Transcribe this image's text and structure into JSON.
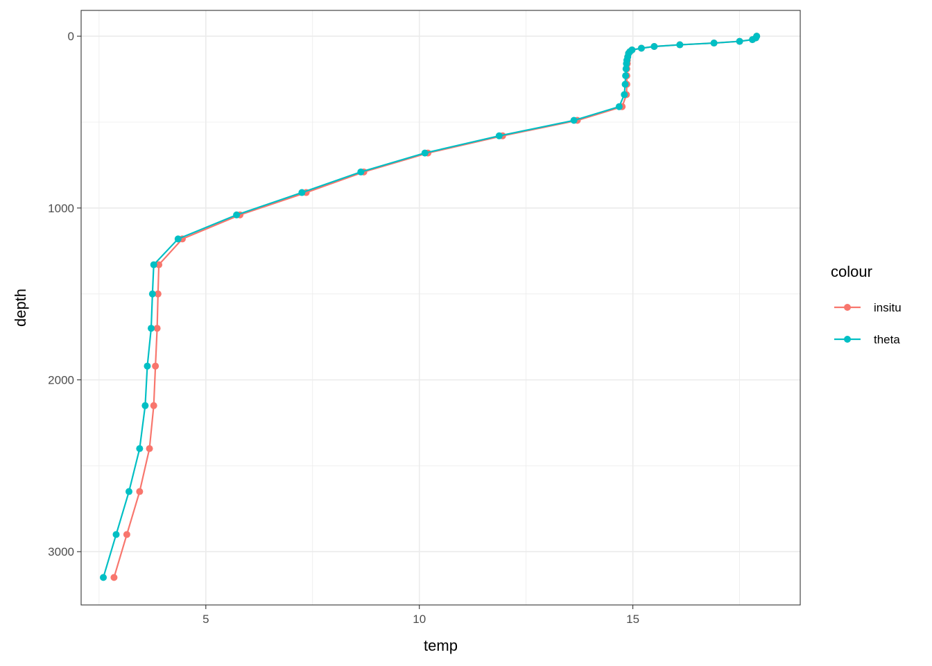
{
  "chart_data": {
    "type": "line",
    "xlabel": "temp",
    "ylabel": "depth",
    "xlim": [
      2.08,
      18.92
    ],
    "ylim": [
      -150,
      3310
    ],
    "y_reversed": true,
    "grid": true,
    "x_ticks": [
      5,
      10,
      15
    ],
    "x_tick_labels": [
      "5",
      "10",
      "15"
    ],
    "x_minor_ticks": [
      2.5,
      7.5,
      12.5,
      17.5
    ],
    "y_ticks": [
      0,
      1000,
      2000,
      3000
    ],
    "y_tick_labels": [
      "0",
      "1000",
      "2000",
      "3000"
    ],
    "y_minor_ticks": [
      500,
      1500,
      2500
    ],
    "legend": {
      "title": "colour",
      "position": "right"
    },
    "series": [
      {
        "name": "insitu",
        "color": "#F8766D",
        "points": [
          [
            17.9,
            0
          ],
          [
            17.88,
            10
          ],
          [
            17.8,
            20
          ],
          [
            17.5,
            30
          ],
          [
            16.9,
            40
          ],
          [
            16.1,
            50
          ],
          [
            15.5,
            60
          ],
          [
            15.2,
            70
          ],
          [
            14.98,
            80
          ],
          [
            14.93,
            90
          ],
          [
            14.9,
            100
          ],
          [
            14.88,
            120
          ],
          [
            14.87,
            140
          ],
          [
            14.87,
            160
          ],
          [
            14.86,
            190
          ],
          [
            14.86,
            230
          ],
          [
            14.86,
            280
          ],
          [
            14.85,
            340
          ],
          [
            14.75,
            410
          ],
          [
            13.7,
            490
          ],
          [
            11.95,
            580
          ],
          [
            10.2,
            680
          ],
          [
            8.7,
            790
          ],
          [
            7.35,
            910
          ],
          [
            5.8,
            1040
          ],
          [
            4.45,
            1180
          ],
          [
            3.9,
            1330
          ],
          [
            3.88,
            1500
          ],
          [
            3.86,
            1700
          ],
          [
            3.82,
            1920
          ],
          [
            3.78,
            2150
          ],
          [
            3.68,
            2400
          ],
          [
            3.45,
            2650
          ],
          [
            3.15,
            2900
          ],
          [
            2.85,
            3150
          ]
        ]
      },
      {
        "name": "theta",
        "color": "#00BFC4",
        "points": [
          [
            17.9,
            0
          ],
          [
            17.88,
            10
          ],
          [
            17.8,
            20
          ],
          [
            17.5,
            30
          ],
          [
            16.9,
            40
          ],
          [
            16.1,
            50
          ],
          [
            15.5,
            60
          ],
          [
            15.2,
            70
          ],
          [
            14.98,
            80
          ],
          [
            14.93,
            90
          ],
          [
            14.9,
            100
          ],
          [
            14.88,
            120
          ],
          [
            14.86,
            140
          ],
          [
            14.85,
            160
          ],
          [
            14.84,
            190
          ],
          [
            14.83,
            230
          ],
          [
            14.82,
            280
          ],
          [
            14.8,
            340
          ],
          [
            14.68,
            410
          ],
          [
            13.62,
            490
          ],
          [
            11.87,
            580
          ],
          [
            10.13,
            680
          ],
          [
            8.63,
            790
          ],
          [
            7.25,
            910
          ],
          [
            5.72,
            1040
          ],
          [
            4.35,
            1180
          ],
          [
            3.78,
            1330
          ],
          [
            3.75,
            1500
          ],
          [
            3.72,
            1700
          ],
          [
            3.63,
            1920
          ],
          [
            3.58,
            2150
          ],
          [
            3.45,
            2400
          ],
          [
            3.2,
            2650
          ],
          [
            2.9,
            2900
          ],
          [
            2.6,
            3150
          ]
        ]
      }
    ]
  }
}
